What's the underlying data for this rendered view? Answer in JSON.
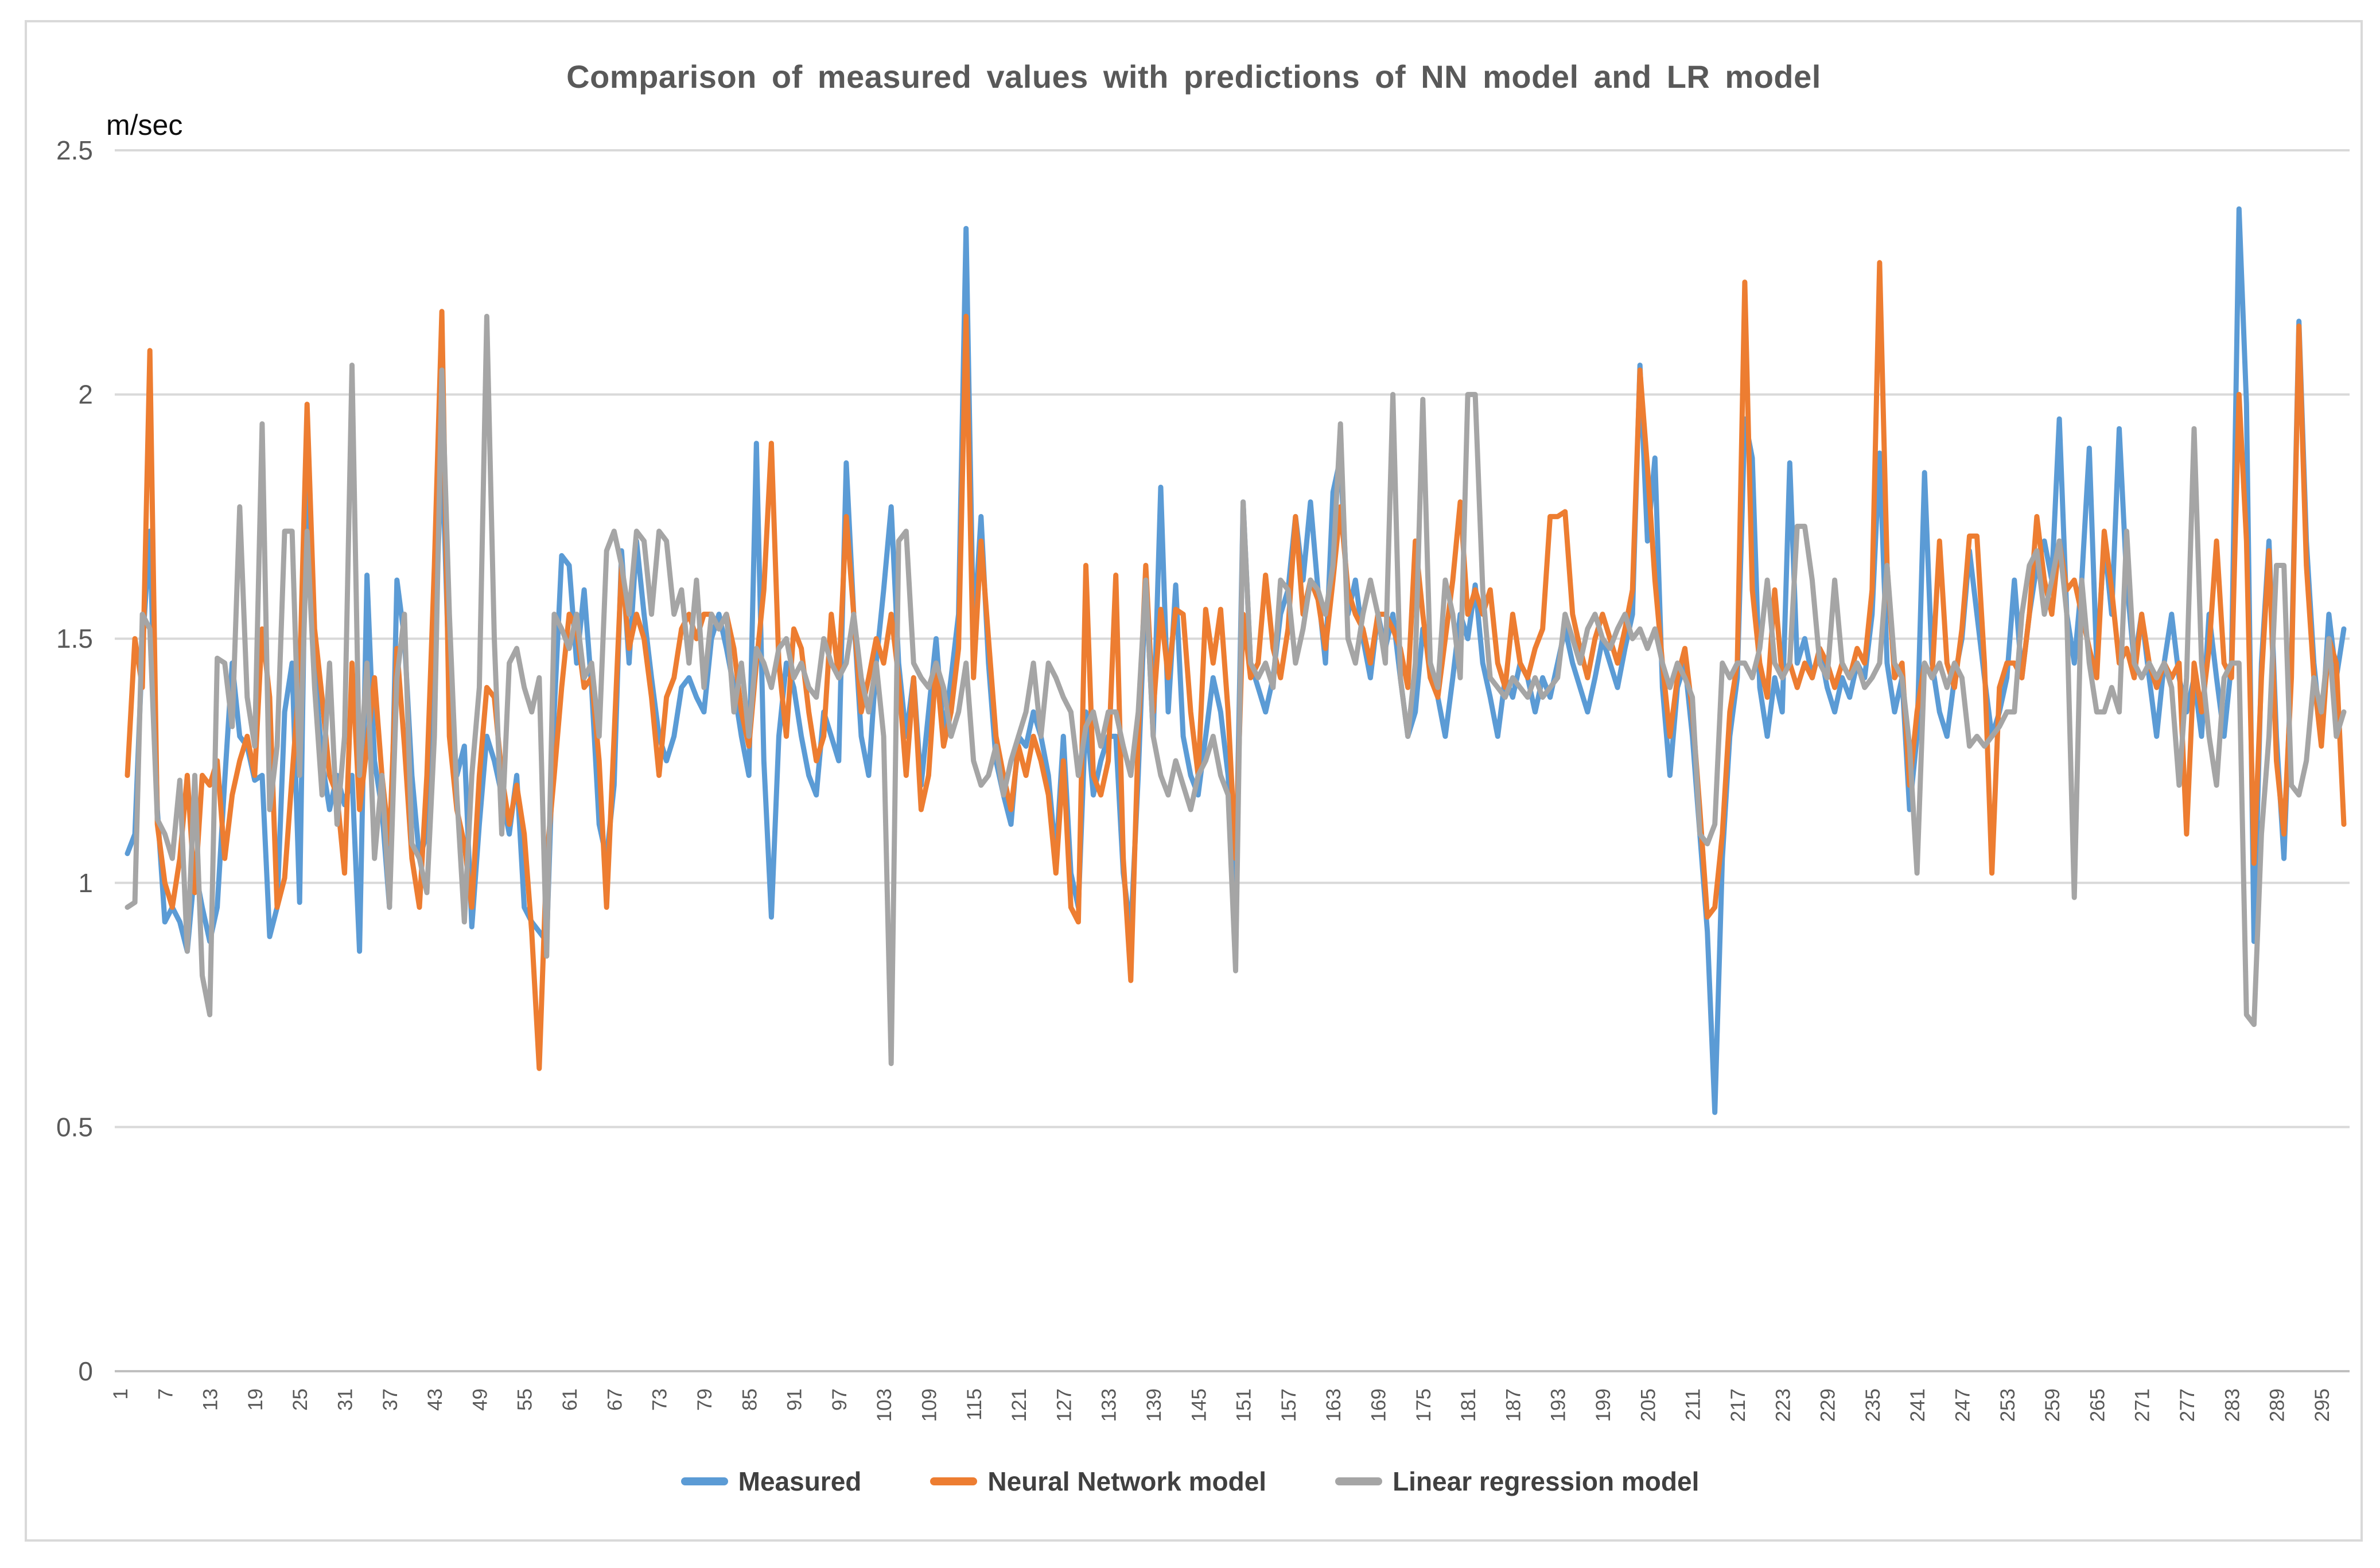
{
  "chart": {
    "frame_border_color": "#D9D9D9",
    "gridline_color": "#D9D9D9",
    "axis_line_color": "#BFBFBF",
    "tick_text_color": "#595959",
    "title_text_color": "#595959",
    "unit_text_color": "#0D0D0D",
    "legend_text_color": "#404040"
  },
  "chart_data": {
    "type": "line",
    "title": "Comparison of measured values with predictions of NN model and LR model",
    "ylabel": "m/sec",
    "xlabel": "",
    "ylim": [
      0,
      2.5
    ],
    "grid": true,
    "legend_position": "bottom",
    "n_points": 297,
    "x_range": [
      1,
      297
    ],
    "y_ticks": [
      0,
      0.5,
      1,
      1.5,
      2,
      2.5
    ],
    "y_tick_labels": [
      "0",
      "0.5",
      "1",
      "1.5",
      "2",
      "2.5"
    ],
    "x_tick_labels": [
      1,
      7,
      13,
      19,
      25,
      31,
      37,
      43,
      49,
      55,
      61,
      67,
      73,
      79,
      85,
      91,
      97,
      103,
      109,
      115,
      121,
      127,
      133,
      139,
      145,
      151,
      157,
      163,
      169,
      175,
      181,
      187,
      193,
      199,
      205,
      211,
      217,
      223,
      229,
      235,
      241,
      247,
      253,
      259,
      265,
      271,
      277,
      283,
      289,
      295
    ],
    "series": [
      {
        "name": "Measured",
        "color": "#5B9BD5",
        "values": [
          1.06,
          1.1,
          1.48,
          1.72,
          1.15,
          0.92,
          0.95,
          0.92,
          0.86,
          1.03,
          0.95,
          0.88,
          0.95,
          1.21,
          1.45,
          1.3,
          1.28,
          1.21,
          1.22,
          0.89,
          0.95,
          1.35,
          1.45,
          0.96,
          1.92,
          1.45,
          1.25,
          1.15,
          1.22,
          1.16,
          1.22,
          0.86,
          1.63,
          1.25,
          1.15,
          0.95,
          1.62,
          1.5,
          1.22,
          1.05,
          1.1,
          1.45,
          1.9,
          1.4,
          1.22,
          1.28,
          0.91,
          1.12,
          1.3,
          1.25,
          1.18,
          1.1,
          1.22,
          0.95,
          0.92,
          0.9,
          0.88,
          1.35,
          1.67,
          1.65,
          1.45,
          1.6,
          1.4,
          1.12,
          1.05,
          1.2,
          1.68,
          1.45,
          1.7,
          1.55,
          1.42,
          1.3,
          1.25,
          1.3,
          1.4,
          1.42,
          1.38,
          1.35,
          1.5,
          1.55,
          1.48,
          1.4,
          1.3,
          1.22,
          1.9,
          1.25,
          0.93,
          1.3,
          1.45,
          1.4,
          1.3,
          1.22,
          1.18,
          1.35,
          1.3,
          1.25,
          1.86,
          1.55,
          1.3,
          1.22,
          1.45,
          1.6,
          1.77,
          1.45,
          1.3,
          1.42,
          1.2,
          1.35,
          1.5,
          1.3,
          1.42,
          1.55,
          2.34,
          1.5,
          1.75,
          1.45,
          1.25,
          1.18,
          1.12,
          1.3,
          1.28,
          1.35,
          1.3,
          1.22,
          1.05,
          1.3,
          1.02,
          0.95,
          1.35,
          1.18,
          1.25,
          1.3,
          1.3,
          1.02,
          0.9,
          1.22,
          1.62,
          1.3,
          1.81,
          1.35,
          1.61,
          1.3,
          1.22,
          1.18,
          1.3,
          1.42,
          1.35,
          1.22,
          0.98,
          1.78,
          1.45,
          1.4,
          1.35,
          1.42,
          1.55,
          1.6,
          1.75,
          1.62,
          1.78,
          1.6,
          1.45,
          1.8,
          1.87,
          1.55,
          1.62,
          1.5,
          1.42,
          1.55,
          1.48,
          1.55,
          1.42,
          1.3,
          1.35,
          1.52,
          1.45,
          1.38,
          1.3,
          1.42,
          1.55,
          1.5,
          1.61,
          1.45,
          1.38,
          1.3,
          1.42,
          1.38,
          1.45,
          1.42,
          1.35,
          1.42,
          1.38,
          1.45,
          1.52,
          1.45,
          1.4,
          1.35,
          1.42,
          1.5,
          1.45,
          1.4,
          1.48,
          1.55,
          2.06,
          1.7,
          1.87,
          1.4,
          1.22,
          1.4,
          1.45,
          1.3,
          1.1,
          0.9,
          0.53,
          1.05,
          1.3,
          1.42,
          1.95,
          1.87,
          1.4,
          1.3,
          1.42,
          1.35,
          1.86,
          1.45,
          1.5,
          1.42,
          1.48,
          1.4,
          1.35,
          1.42,
          1.38,
          1.45,
          1.42,
          1.55,
          1.88,
          1.45,
          1.35,
          1.42,
          1.15,
          1.3,
          1.84,
          1.45,
          1.35,
          1.3,
          1.42,
          1.5,
          1.68,
          1.55,
          1.42,
          1.3,
          1.35,
          1.42,
          1.62,
          1.42,
          1.55,
          1.65,
          1.7,
          1.62,
          1.95,
          1.55,
          1.45,
          1.62,
          1.89,
          1.45,
          1.7,
          1.55,
          1.93,
          1.62,
          1.45,
          1.55,
          1.42,
          1.3,
          1.45,
          1.55,
          1.42,
          1.35,
          1.42,
          1.3,
          1.55,
          1.42,
          1.3,
          1.45,
          2.38,
          1.98,
          0.88,
          1.45,
          1.7,
          1.3,
          1.05,
          1.45,
          2.15,
          1.7,
          1.45,
          1.3,
          1.55,
          1.42,
          1.52
        ]
      },
      {
        "name": "Neural Network model",
        "color": "#ED7D31",
        "values": [
          1.22,
          1.5,
          1.4,
          2.09,
          1.12,
          1.0,
          0.95,
          1.05,
          1.22,
          0.98,
          1.22,
          1.2,
          1.25,
          1.05,
          1.18,
          1.25,
          1.3,
          1.22,
          1.52,
          1.38,
          0.95,
          1.01,
          1.22,
          1.42,
          1.98,
          1.52,
          1.38,
          1.22,
          1.18,
          1.02,
          1.45,
          1.15,
          1.28,
          1.42,
          1.22,
          1.08,
          1.48,
          1.28,
          1.05,
          0.95,
          1.22,
          1.65,
          2.17,
          1.3,
          1.15,
          1.08,
          0.95,
          1.22,
          1.4,
          1.38,
          1.22,
          1.12,
          1.2,
          1.1,
          0.9,
          0.62,
          1.05,
          1.22,
          1.4,
          1.55,
          1.52,
          1.4,
          1.42,
          1.25,
          0.95,
          1.3,
          1.65,
          1.48,
          1.55,
          1.5,
          1.38,
          1.22,
          1.38,
          1.42,
          1.52,
          1.55,
          1.5,
          1.55,
          1.55,
          1.52,
          1.55,
          1.48,
          1.35,
          1.28,
          1.45,
          1.6,
          1.9,
          1.45,
          1.3,
          1.52,
          1.48,
          1.35,
          1.25,
          1.3,
          1.55,
          1.42,
          1.75,
          1.55,
          1.35,
          1.42,
          1.5,
          1.45,
          1.55,
          1.42,
          1.22,
          1.42,
          1.15,
          1.22,
          1.45,
          1.28,
          1.35,
          1.48,
          2.16,
          1.42,
          1.7,
          1.5,
          1.3,
          1.22,
          1.15,
          1.28,
          1.22,
          1.3,
          1.25,
          1.18,
          1.02,
          1.25,
          0.95,
          0.92,
          1.65,
          1.22,
          1.18,
          1.25,
          1.63,
          1.05,
          0.8,
          1.3,
          1.65,
          1.35,
          1.56,
          1.42,
          1.56,
          1.55,
          1.35,
          1.22,
          1.56,
          1.45,
          1.56,
          1.35,
          1.05,
          1.55,
          1.42,
          1.45,
          1.63,
          1.48,
          1.42,
          1.52,
          1.75,
          1.55,
          1.62,
          1.58,
          1.48,
          1.62,
          1.77,
          1.6,
          1.55,
          1.52,
          1.45,
          1.55,
          1.55,
          1.52,
          1.48,
          1.4,
          1.7,
          1.55,
          1.42,
          1.38,
          1.5,
          1.62,
          1.78,
          1.55,
          1.6,
          1.55,
          1.6,
          1.45,
          1.4,
          1.55,
          1.45,
          1.42,
          1.48,
          1.52,
          1.75,
          1.75,
          1.76,
          1.55,
          1.48,
          1.42,
          1.5,
          1.55,
          1.5,
          1.45,
          1.52,
          1.6,
          2.05,
          1.85,
          1.62,
          1.45,
          1.3,
          1.42,
          1.48,
          1.35,
          1.15,
          0.93,
          0.95,
          1.1,
          1.35,
          1.45,
          2.23,
          1.6,
          1.45,
          1.38,
          1.6,
          1.42,
          1.45,
          1.4,
          1.45,
          1.42,
          1.48,
          1.45,
          1.4,
          1.45,
          1.42,
          1.48,
          1.45,
          1.6,
          2.27,
          1.65,
          1.42,
          1.45,
          1.2,
          1.35,
          1.45,
          1.42,
          1.7,
          1.45,
          1.4,
          1.52,
          1.71,
          1.71,
          1.45,
          1.02,
          1.4,
          1.45,
          1.45,
          1.42,
          1.55,
          1.75,
          1.62,
          1.55,
          1.7,
          1.6,
          1.62,
          1.55,
          1.48,
          1.42,
          1.72,
          1.6,
          1.45,
          1.48,
          1.42,
          1.55,
          1.45,
          1.4,
          1.45,
          1.42,
          1.45,
          1.1,
          1.45,
          1.35,
          1.48,
          1.7,
          1.45,
          1.42,
          2.0,
          1.7,
          1.04,
          1.42,
          1.68,
          1.25,
          1.1,
          1.42,
          2.14,
          1.65,
          1.42,
          1.28,
          1.5,
          1.45,
          1.12
        ]
      },
      {
        "name": "Linear regression model",
        "color": "#A5A5A5",
        "values": [
          0.95,
          0.96,
          1.55,
          1.52,
          1.13,
          1.1,
          1.05,
          1.21,
          0.86,
          1.22,
          0.81,
          0.73,
          1.46,
          1.45,
          1.32,
          1.77,
          1.38,
          1.28,
          1.94,
          1.15,
          1.28,
          1.72,
          1.72,
          1.22,
          1.72,
          1.4,
          1.18,
          1.45,
          1.12,
          1.3,
          2.06,
          1.22,
          1.45,
          1.05,
          1.22,
          0.95,
          1.42,
          1.55,
          1.08,
          1.05,
          0.98,
          1.3,
          2.05,
          1.55,
          1.18,
          0.92,
          1.22,
          1.4,
          2.16,
          1.5,
          1.1,
          1.45,
          1.48,
          1.4,
          1.35,
          1.42,
          0.85,
          1.55,
          1.52,
          1.48,
          1.55,
          1.42,
          1.45,
          1.3,
          1.68,
          1.72,
          1.65,
          1.55,
          1.72,
          1.7,
          1.55,
          1.72,
          1.7,
          1.55,
          1.6,
          1.45,
          1.62,
          1.4,
          1.55,
          1.52,
          1.55,
          1.35,
          1.45,
          1.3,
          1.48,
          1.45,
          1.4,
          1.48,
          1.5,
          1.42,
          1.45,
          1.4,
          1.38,
          1.5,
          1.45,
          1.42,
          1.45,
          1.55,
          1.42,
          1.35,
          1.45,
          1.3,
          0.63,
          1.7,
          1.72,
          1.45,
          1.42,
          1.4,
          1.45,
          1.4,
          1.3,
          1.35,
          1.45,
          1.25,
          1.2,
          1.22,
          1.28,
          1.18,
          1.25,
          1.3,
          1.35,
          1.45,
          1.3,
          1.45,
          1.42,
          1.38,
          1.35,
          1.22,
          1.32,
          1.35,
          1.28,
          1.35,
          1.35,
          1.28,
          1.22,
          1.35,
          1.62,
          1.3,
          1.22,
          1.18,
          1.25,
          1.2,
          1.15,
          1.22,
          1.25,
          1.3,
          1.22,
          1.18,
          0.82,
          1.78,
          1.45,
          1.42,
          1.45,
          1.4,
          1.62,
          1.6,
          1.45,
          1.52,
          1.62,
          1.6,
          1.55,
          1.65,
          1.94,
          1.5,
          1.45,
          1.55,
          1.62,
          1.55,
          1.45,
          2.0,
          1.42,
          1.3,
          1.45,
          1.99,
          1.45,
          1.4,
          1.62,
          1.55,
          1.42,
          2.0,
          2.0,
          1.6,
          1.42,
          1.4,
          1.38,
          1.42,
          1.4,
          1.38,
          1.42,
          1.38,
          1.4,
          1.42,
          1.55,
          1.5,
          1.45,
          1.52,
          1.55,
          1.5,
          1.48,
          1.52,
          1.55,
          1.5,
          1.52,
          1.48,
          1.52,
          1.45,
          1.4,
          1.45,
          1.42,
          1.38,
          1.1,
          1.08,
          1.12,
          1.45,
          1.42,
          1.45,
          1.45,
          1.42,
          1.48,
          1.62,
          1.45,
          1.42,
          1.45,
          1.73,
          1.73,
          1.62,
          1.45,
          1.42,
          1.62,
          1.45,
          1.42,
          1.45,
          1.4,
          1.42,
          1.45,
          1.65,
          1.45,
          1.42,
          1.28,
          1.02,
          1.45,
          1.42,
          1.45,
          1.4,
          1.45,
          1.42,
          1.28,
          1.3,
          1.28,
          1.3,
          1.32,
          1.35,
          1.35,
          1.55,
          1.65,
          1.68,
          1.55,
          1.62,
          1.7,
          1.55,
          0.97,
          1.62,
          1.45,
          1.35,
          1.35,
          1.4,
          1.35,
          1.72,
          1.45,
          1.42,
          1.45,
          1.42,
          1.45,
          1.4,
          1.2,
          1.42,
          1.93,
          1.45,
          1.3,
          1.2,
          1.42,
          1.45,
          1.45,
          0.73,
          0.71,
          1.1,
          1.3,
          1.65,
          1.65,
          1.2,
          1.18,
          1.25,
          1.42,
          1.35,
          1.5,
          1.3,
          1.35
        ]
      }
    ]
  }
}
